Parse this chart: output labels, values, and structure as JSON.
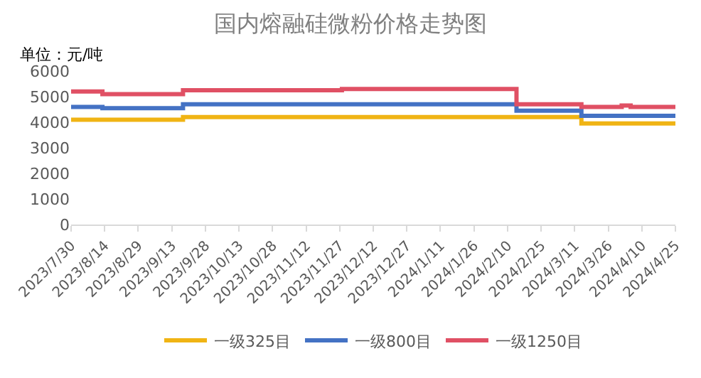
{
  "chart_data": {
    "type": "step",
    "title": "国内熔融硅微粉价格走势图",
    "ylabel": "单位：元/吨",
    "xlim": [
      "2023-07-30",
      "2024-04-25"
    ],
    "xticks": [
      {
        "value": "2023-07-30",
        "label": "2023/7/30"
      },
      {
        "value": "2023-08-14",
        "label": "2023/8/14"
      },
      {
        "value": "2023-08-29",
        "label": "2023/8/29"
      },
      {
        "value": "2023-09-13",
        "label": "2023/9/13"
      },
      {
        "value": "2023-09-28",
        "label": "2023/9/28"
      },
      {
        "value": "2023-10-13",
        "label": "2023/10/13"
      },
      {
        "value": "2023-10-28",
        "label": "2023/10/28"
      },
      {
        "value": "2023-11-12",
        "label": "2023/11/12"
      },
      {
        "value": "2023-11-27",
        "label": "2023/11/27"
      },
      {
        "value": "2023-12-12",
        "label": "2023/12/12"
      },
      {
        "value": "2023-12-27",
        "label": "2023/12/27"
      },
      {
        "value": "2024-01-11",
        "label": "2024/1/11"
      },
      {
        "value": "2024-01-26",
        "label": "2024/1/26"
      },
      {
        "value": "2024-02-10",
        "label": "2024/2/10"
      },
      {
        "value": "2024-02-25",
        "label": "2024/2/25"
      },
      {
        "value": "2024-03-11",
        "label": "2024/3/11"
      },
      {
        "value": "2024-03-26",
        "label": "2024/3/26"
      },
      {
        "value": "2024-04-10",
        "label": "2024/4/10"
      },
      {
        "value": "2024-04-25",
        "label": "2024/4/25"
      }
    ],
    "ylim": [
      0,
      6000
    ],
    "yticks": [
      0,
      1000,
      2000,
      3000,
      4000,
      5000,
      6000
    ],
    "legend": "bottom",
    "series": [
      {
        "name": "一级325目",
        "color": "#f0b414",
        "x": [
          "2023-07-30",
          "2023-09-18",
          "2024-03-14",
          "2024-04-25"
        ],
        "values": [
          4100,
          4200,
          3950,
          3950
        ]
      },
      {
        "name": "一级800目",
        "color": "#4472c4",
        "x": [
          "2023-07-30",
          "2023-08-13",
          "2023-09-18",
          "2024-02-14",
          "2024-03-14",
          "2024-04-25"
        ],
        "values": [
          4600,
          4550,
          4700,
          4450,
          4250,
          4250
        ]
      },
      {
        "name": "一级1250目",
        "color": "#e05064",
        "x": [
          "2023-07-30",
          "2023-08-13",
          "2023-09-18",
          "2023-11-28",
          "2024-02-14",
          "2024-03-14",
          "2024-04-01",
          "2024-04-05",
          "2024-04-25"
        ],
        "values": [
          5200,
          5100,
          5250,
          5300,
          4700,
          4600,
          4650,
          4600,
          4600
        ]
      }
    ]
  }
}
